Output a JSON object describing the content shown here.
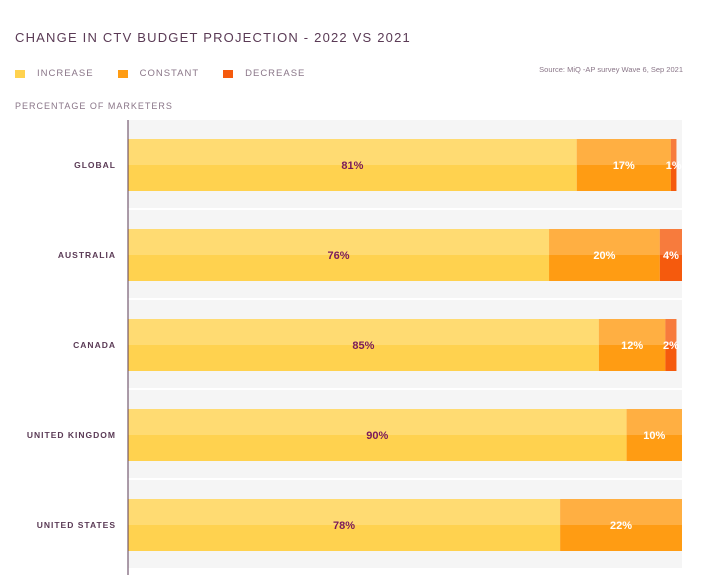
{
  "title": "CHANGE IN CTV BUDGET PROJECTION -  2022 VS 2021",
  "source": "Source: MiQ -AP survey Wave 6, Sep 2021",
  "axis_note": "PERCENTAGE OF MARKETERS",
  "colors": {
    "increase": "#ffd24f",
    "constant": "#ff9c13",
    "decrease": "#f55a0d",
    "row_band": "#f5f5f5",
    "axis": "#5a3a55",
    "label_dark": "#7a1a5a",
    "label_light": "#ffffff"
  },
  "chart_data": {
    "type": "bar",
    "orientation": "horizontal",
    "stacked": true,
    "categories": [
      "GLOBAL",
      "AUSTRALIA",
      "CANADA",
      "UNITED KINGDOM",
      "UNITED STATES"
    ],
    "series": [
      {
        "name": "INCREASE",
        "color": "#ffd24f",
        "values": [
          81,
          76,
          85,
          90,
          78
        ]
      },
      {
        "name": "CONSTANT",
        "color": "#ff9c13",
        "values": [
          17,
          20,
          12,
          10,
          22
        ]
      },
      {
        "name": "DECREASE",
        "color": "#f55a0d",
        "values": [
          1,
          4,
          2,
          0,
          0
        ]
      }
    ],
    "value_labels": [
      [
        "81%",
        "17%",
        "1%"
      ],
      [
        "76%",
        "20%",
        "4%"
      ],
      [
        "85%",
        "12%",
        "2%"
      ],
      [
        "90%",
        "10%",
        ""
      ],
      [
        "78%",
        "22%",
        ""
      ]
    ],
    "xlim": [
      0,
      100
    ],
    "unit": "%",
    "legend_position": "top-left",
    "grid": false
  }
}
